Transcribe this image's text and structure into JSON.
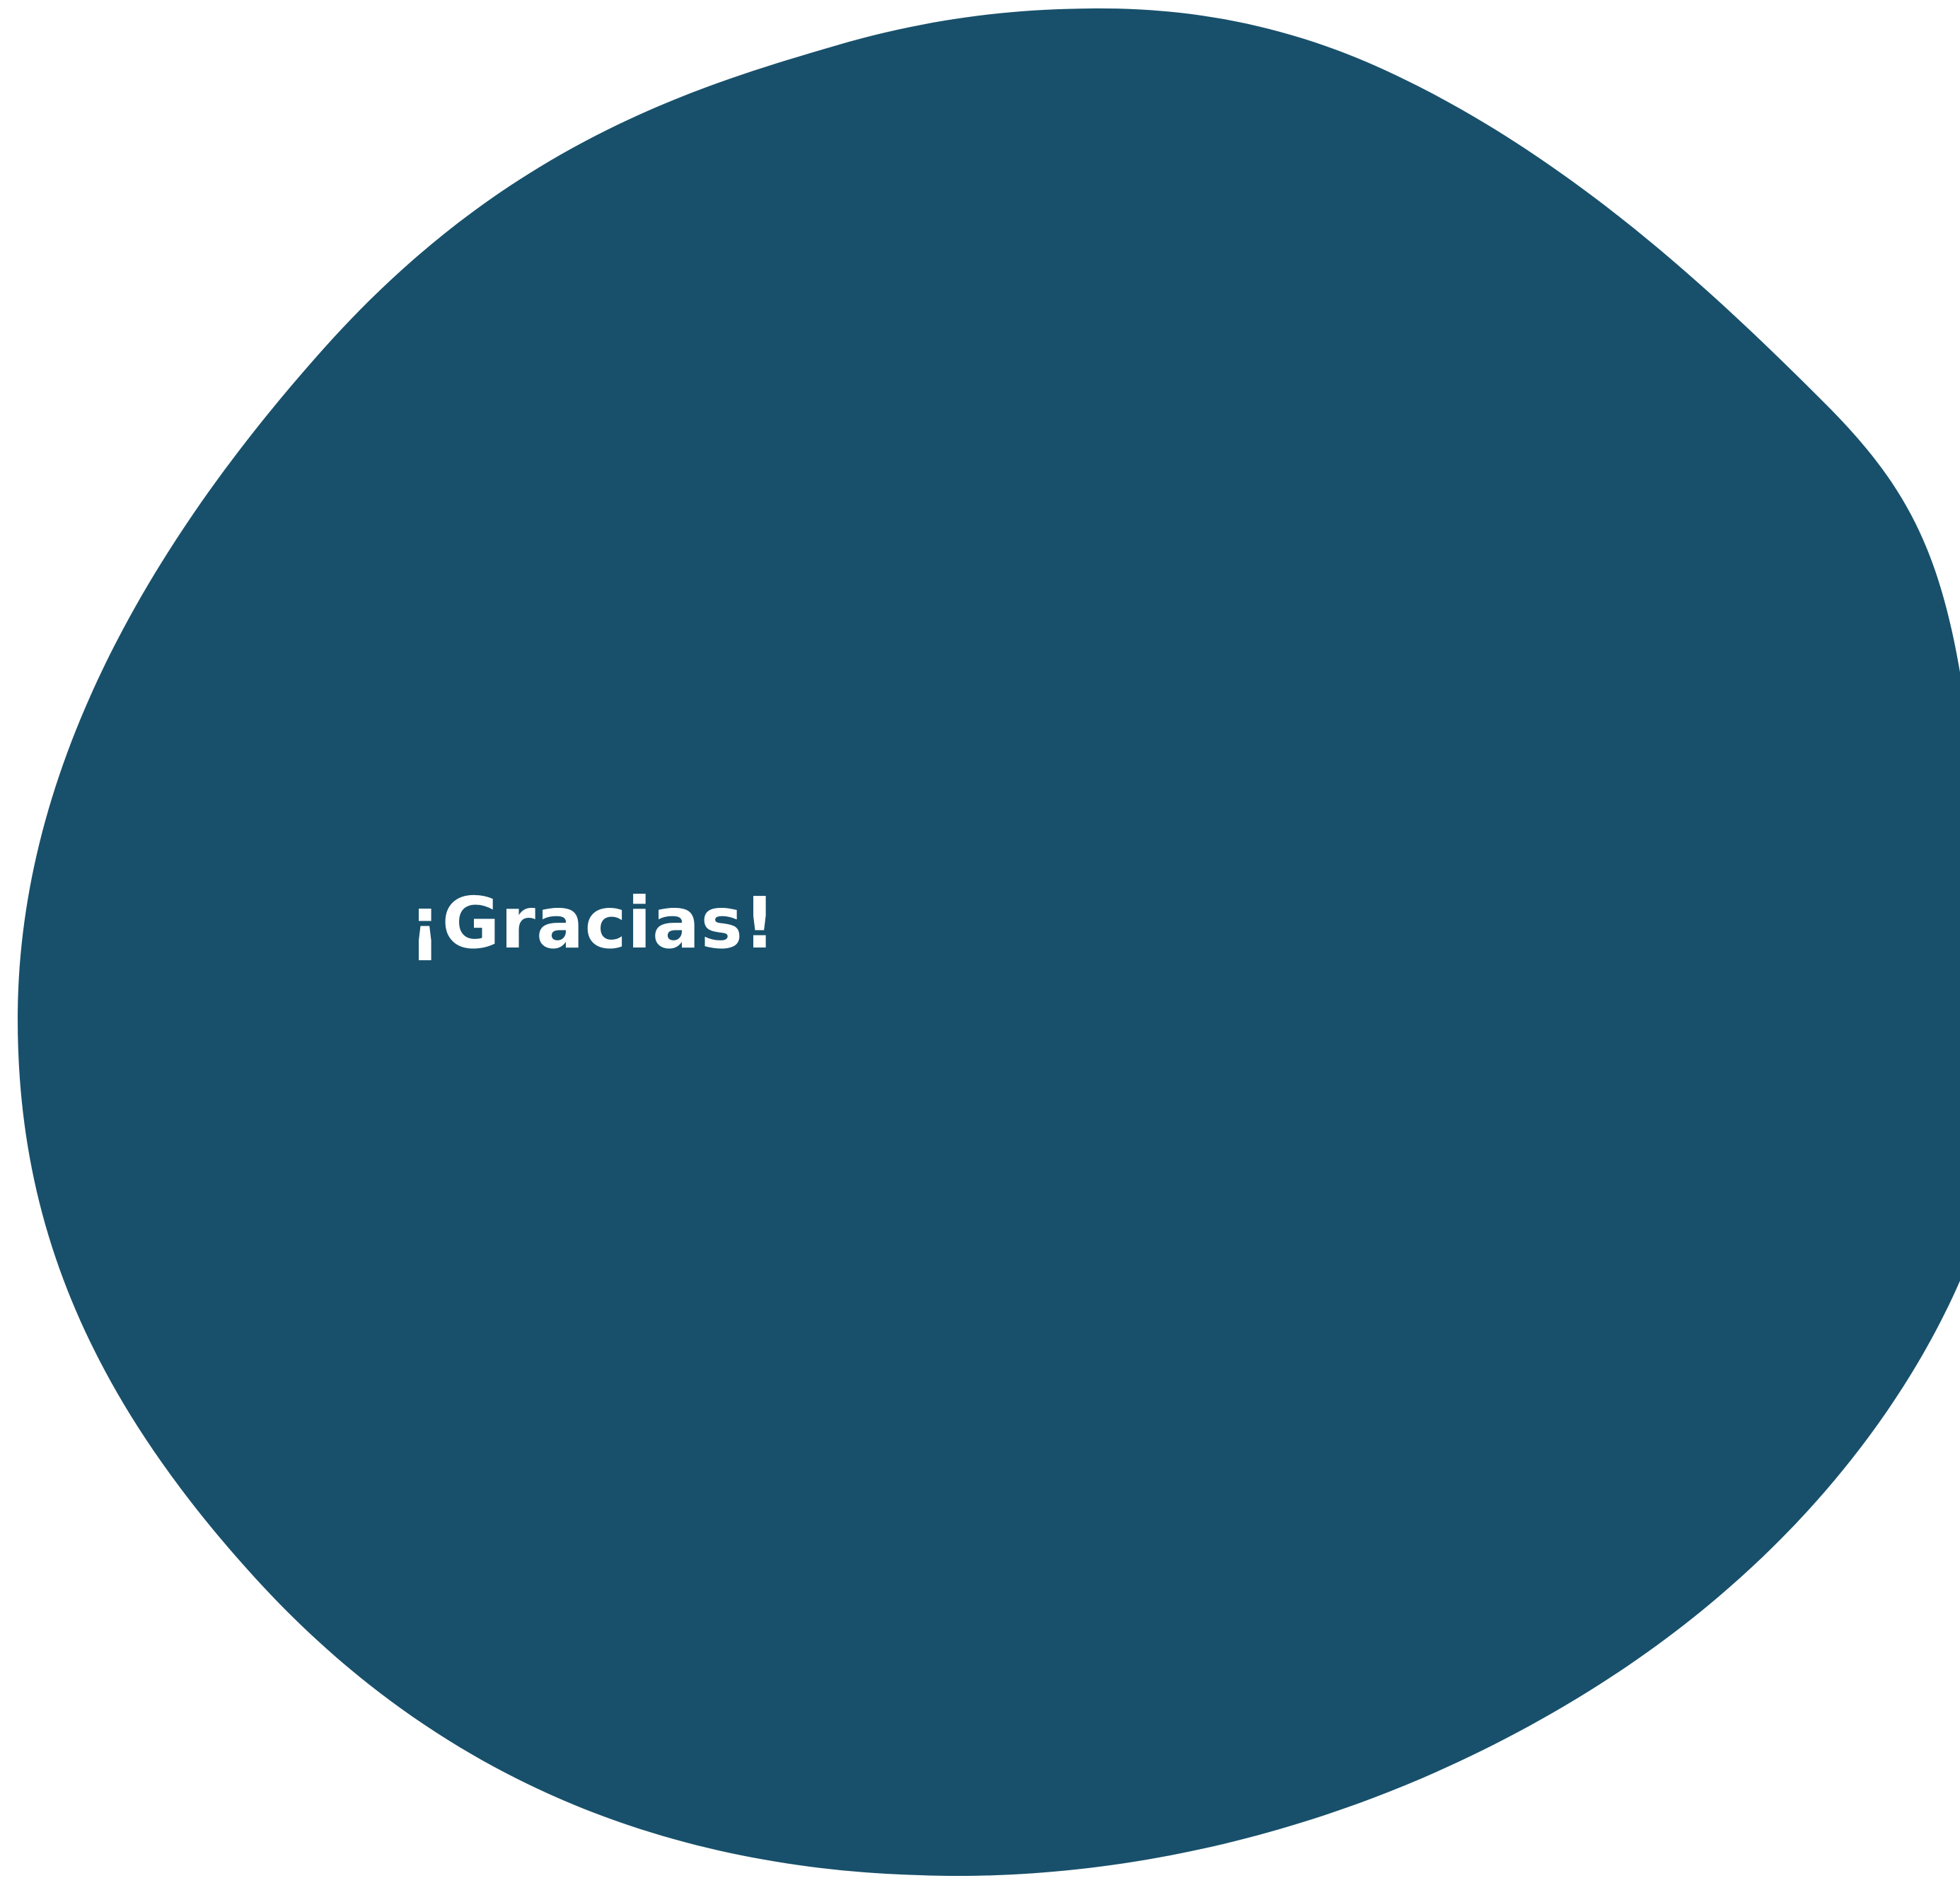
{
  "slide": {
    "message": "¡Gracias!"
  },
  "colors": {
    "background": "#ffffff",
    "blob": "#18506b",
    "text": "#ffffff"
  }
}
